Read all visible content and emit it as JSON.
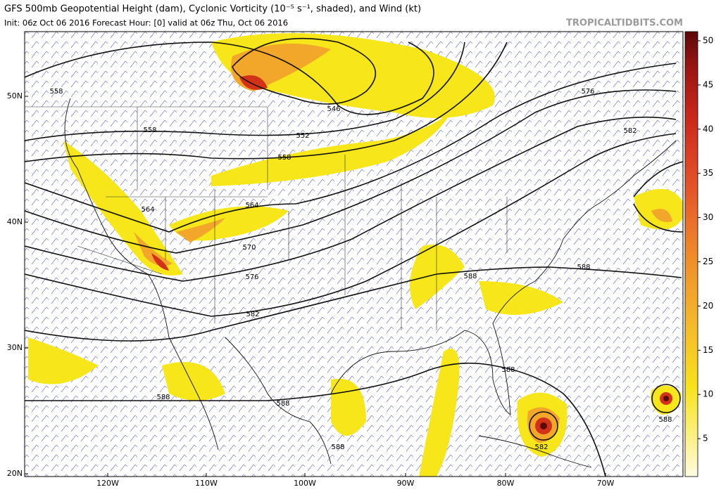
{
  "header": {
    "title": "GFS 500mb Geopotential Height (dam), Cyclonic Vorticity (10⁻⁵ s⁻¹, shaded), and Wind (kt)",
    "subtitle": "Init: 06z Oct 06 2016   Forecast Hour: [0]   valid at 06z Thu, Oct 06 2016",
    "watermark": "TROPICALTIDBITS.COM"
  },
  "map": {
    "lat_labels": [
      "50N",
      "40N",
      "30N",
      "20N"
    ],
    "lon_labels": [
      "120W",
      "110W",
      "100W",
      "90W",
      "80W",
      "70W"
    ],
    "contour_labels": [
      "558",
      "546",
      "552",
      "558",
      "558",
      "564",
      "564",
      "570",
      "576",
      "582",
      "576",
      "582",
      "588",
      "588",
      "588",
      "588",
      "588",
      "588",
      "582",
      "588"
    ]
  },
  "colorbar": {
    "ticks": [
      50,
      45,
      40,
      35,
      30,
      25,
      20,
      15,
      10,
      5
    ]
  }
}
